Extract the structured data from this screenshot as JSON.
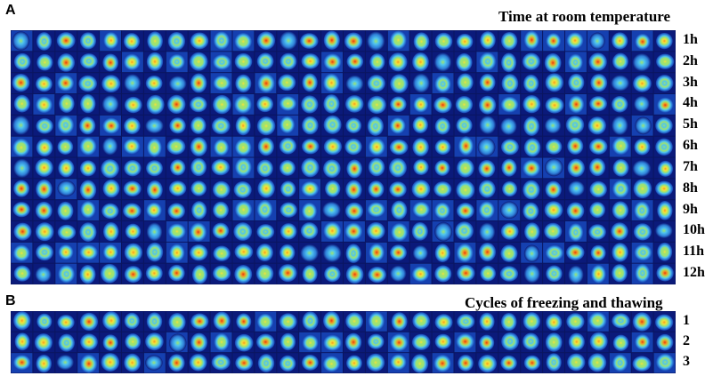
{
  "panels": [
    {
      "letter": "A",
      "title": "Time at room temperature",
      "row_labels": [
        "1h",
        "2h",
        "3h",
        "4h",
        "5h",
        "6h",
        "7h",
        "8h",
        "9h",
        "10h",
        "11h",
        "12h"
      ],
      "columns": 30
    },
    {
      "letter": "B",
      "title": "Cycles of freezing and thawing",
      "row_labels": [
        "1",
        "2",
        "3"
      ],
      "columns": 30
    }
  ],
  "colors": {
    "background_tile": "#0a1a6e",
    "colormap": [
      "#0b1a7a",
      "#1540b0",
      "#2f7fd9",
      "#4fc4ef",
      "#9fe36f",
      "#f5e23a",
      "#f39a1f",
      "#e03a14"
    ]
  }
}
